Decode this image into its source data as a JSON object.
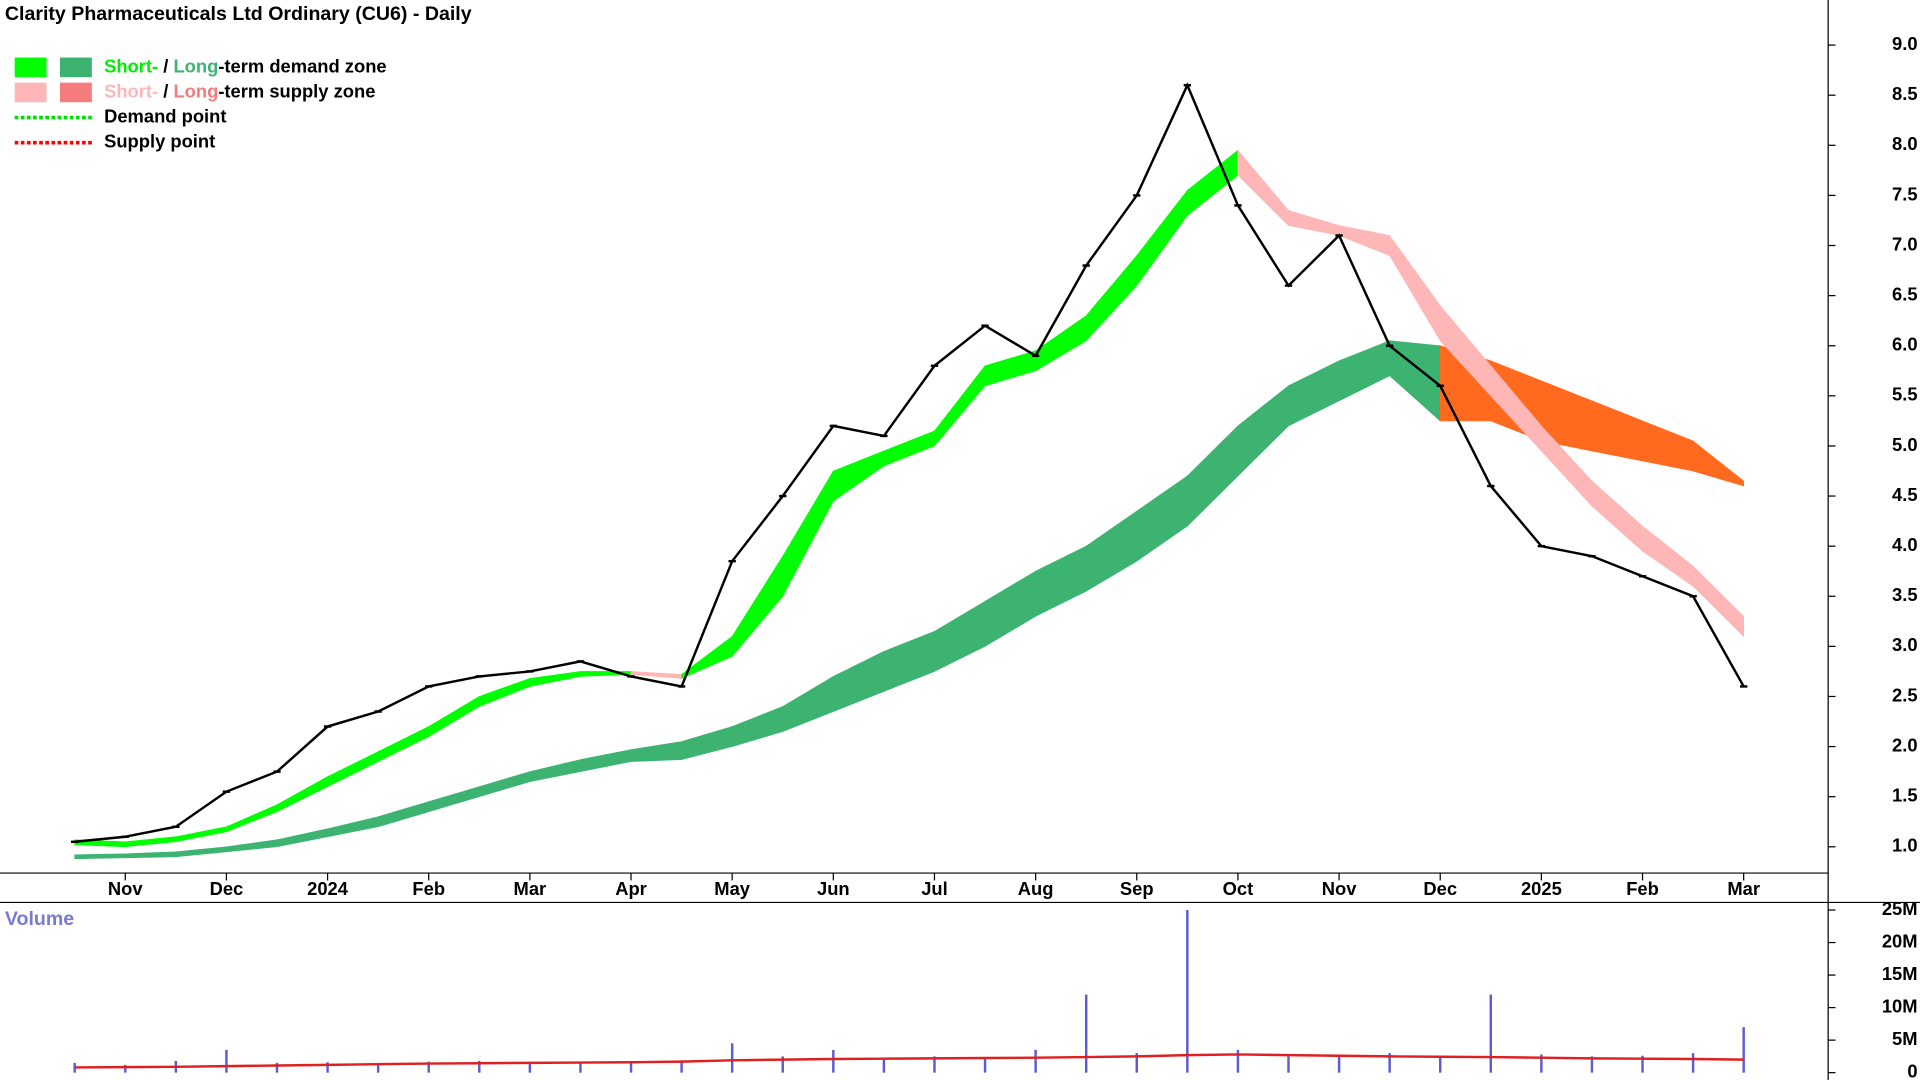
{
  "chart_data": {
    "type": "stock",
    "title": "Clarity Pharmaceuticals Ltd Ordinary (CU6) - Daily",
    "categories": [
      null,
      "Nov",
      null,
      "Dec",
      null,
      "2024",
      null,
      "Feb",
      null,
      "Mar",
      null,
      "Apr",
      null,
      "May",
      null,
      "Jun",
      null,
      "Jul",
      null,
      "Aug",
      null,
      "Sep",
      null,
      "Oct",
      null,
      "Nov",
      null,
      "Dec",
      null,
      "2025",
      null,
      "Feb",
      null,
      "Mar"
    ],
    "price": {
      "color": "#000000",
      "values": [
        1.05,
        1.1,
        1.2,
        1.55,
        1.75,
        2.2,
        2.35,
        2.6,
        2.7,
        2.75,
        2.85,
        2.7,
        2.6,
        3.85,
        4.5,
        5.2,
        5.1,
        5.8,
        6.2,
        5.9,
        6.8,
        7.5,
        8.6,
        7.4,
        6.6,
        7.1,
        6.0,
        5.6,
        4.6,
        4.0,
        3.9,
        3.7,
        3.5,
        2.6
      ]
    },
    "short_zone": {
      "demand_color": "#00ff00",
      "supply_color": "#ffb6b6",
      "upper": [
        1.07,
        1.05,
        1.1,
        1.2,
        1.42,
        1.7,
        1.95,
        2.2,
        2.5,
        2.68,
        2.75,
        2.75,
        2.72,
        3.1,
        3.9,
        4.75,
        4.95,
        5.15,
        5.8,
        5.95,
        6.3,
        6.9,
        7.55,
        7.95,
        7.35,
        7.2,
        7.1,
        6.4,
        5.8,
        5.2,
        4.65,
        4.2,
        3.8,
        3.3
      ],
      "lower": [
        1.02,
        1.0,
        1.05,
        1.15,
        1.35,
        1.6,
        1.85,
        2.1,
        2.4,
        2.6,
        2.7,
        2.72,
        2.68,
        2.9,
        3.5,
        4.45,
        4.8,
        5.0,
        5.6,
        5.75,
        6.05,
        6.6,
        7.3,
        7.7,
        7.2,
        7.1,
        6.9,
        6.05,
        5.5,
        4.95,
        4.4,
        3.95,
        3.6,
        3.1
      ]
    },
    "long_zone": {
      "demand_color": "#3cb371",
      "supply_color": "#ff6a1f",
      "upper": [
        0.92,
        0.93,
        0.95,
        1.0,
        1.07,
        1.18,
        1.3,
        1.45,
        1.6,
        1.75,
        1.87,
        1.97,
        2.05,
        2.2,
        2.4,
        2.7,
        2.95,
        3.15,
        3.45,
        3.75,
        4.0,
        4.35,
        4.7,
        5.2,
        5.6,
        5.85,
        6.05,
        6.0,
        5.85,
        5.65,
        5.45,
        5.25,
        5.05,
        4.65
      ],
      "lower": [
        0.88,
        0.89,
        0.9,
        0.95,
        1.0,
        1.1,
        1.2,
        1.35,
        1.5,
        1.65,
        1.75,
        1.85,
        1.87,
        2.0,
        2.15,
        2.35,
        2.55,
        2.75,
        3.0,
        3.3,
        3.55,
        3.85,
        4.2,
        4.7,
        5.2,
        5.45,
        5.7,
        5.25,
        5.25,
        5.05,
        4.95,
        4.85,
        4.75,
        4.6
      ]
    },
    "ylim": [
      0.75,
      9.45
    ],
    "yticks": [
      {
        "value": 1,
        "label": "1.0"
      },
      1.5,
      {
        "value": 2,
        "label": "2.0"
      },
      2.5,
      {
        "value": 3,
        "label": "3.0"
      },
      3.5,
      {
        "value": 4,
        "label": "4.0"
      },
      4.5,
      {
        "value": 5,
        "label": "5.0"
      },
      5.5,
      {
        "value": 6,
        "label": "6.0"
      },
      6.5,
      {
        "value": 7,
        "label": "7.0"
      },
      7.5,
      {
        "value": 8,
        "label": "8.0"
      },
      8.5,
      {
        "value": 9,
        "label": "9.0"
      }
    ],
    "legend": [
      {
        "swatches": [
          "#00ff00",
          "#3cb371"
        ],
        "parts": [
          "Short-",
          " / ",
          "Long",
          "-term demand zone"
        ],
        "part_colors": [
          "#00ee00",
          "#000000",
          "#3cb371",
          "#000000"
        ]
      },
      {
        "swatches": [
          "#ffb6b6",
          "#f47c7c"
        ],
        "parts": [
          "Short-",
          " / ",
          "Long",
          "-term supply zone"
        ],
        "part_colors": [
          "#ffb6b6",
          "#000000",
          "#f47c7c",
          "#000000"
        ]
      },
      {
        "line": "#00dd00",
        "parts": [
          "Demand point"
        ],
        "part_colors": [
          "#000000"
        ]
      },
      {
        "line": "#ff0000",
        "parts": [
          "Supply point"
        ],
        "part_colors": [
          "#000000"
        ]
      }
    ],
    "volume": {
      "title": "Volume",
      "color": "#5b5bd6",
      "average_color": "#e02020",
      "values": [
        1500000,
        1200000,
        1800000,
        3500000,
        1500000,
        1600000,
        1500000,
        1700000,
        1800000,
        1600000,
        1500000,
        1700000,
        1900000,
        4500000,
        2500000,
        3500000,
        2200000,
        2500000,
        2400000,
        3500000,
        12000000,
        3000000,
        25000000,
        3500000,
        2500000,
        2800000,
        3000000,
        2600000,
        12000000,
        2800000,
        2500000,
        2600000,
        3000000,
        7000000
      ],
      "average": [
        800000,
        850000,
        900000,
        1000000,
        1100000,
        1200000,
        1300000,
        1400000,
        1450000,
        1500000,
        1550000,
        1600000,
        1700000,
        1900000,
        2000000,
        2100000,
        2150000,
        2200000,
        2250000,
        2300000,
        2400000,
        2500000,
        2700000,
        2800000,
        2700000,
        2600000,
        2500000,
        2450000,
        2400000,
        2300000,
        2200000,
        2150000,
        2100000,
        2000000
      ],
      "ylim": [
        0,
        25600000
      ],
      "yticks": [
        0,
        {
          "value": 5000000,
          "label": "5M"
        },
        {
          "value": 10000000,
          "label": "10M"
        },
        {
          "value": 15000000,
          "label": "15M"
        },
        {
          "value": 20000000,
          "label": "20M"
        },
        {
          "value": 25000000,
          "label": "25M"
        }
      ]
    }
  }
}
